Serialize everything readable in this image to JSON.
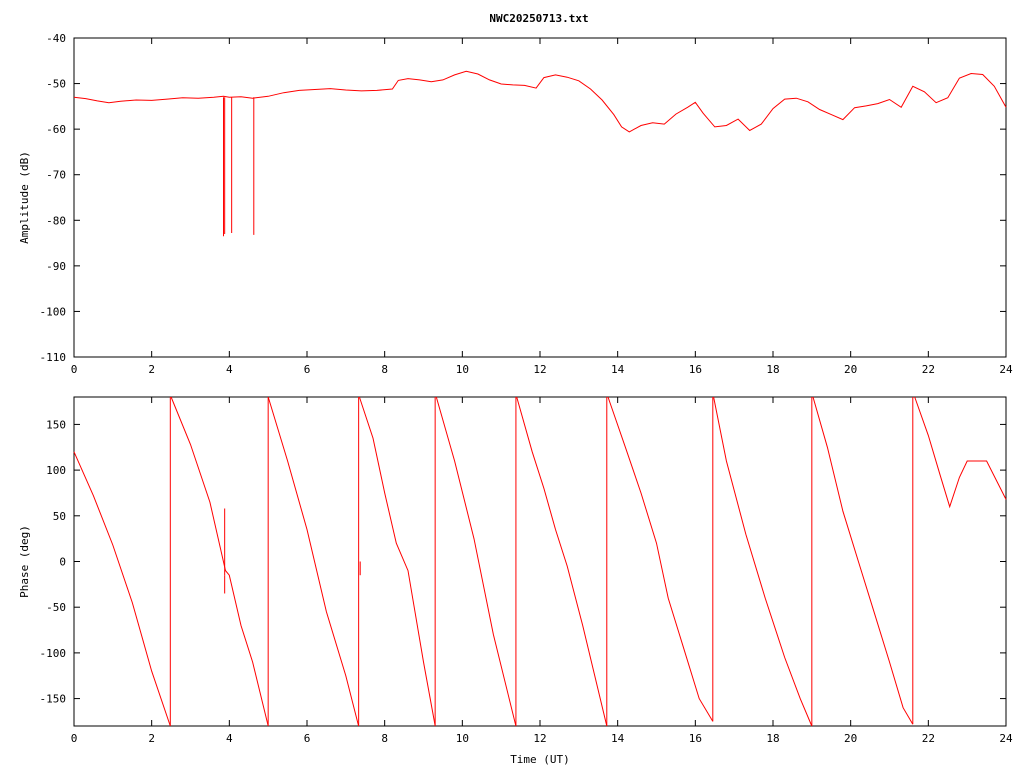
{
  "title": "NWC20250713.txt",
  "chart_data": [
    {
      "type": "line",
      "title": "NWC20250713.txt",
      "xlabel": "",
      "ylabel": "Amplitude (dB)",
      "xlim": [
        0,
        24
      ],
      "ylim": [
        -110,
        -40
      ],
      "xticks": [
        "0",
        "2",
        "4",
        "6",
        "8",
        "10",
        "12",
        "14",
        "16",
        "18",
        "20",
        "22",
        "24"
      ],
      "yticks": [
        "-40",
        "-50",
        "-60",
        "-70",
        "-80",
        "-90",
        "-100",
        "-110"
      ],
      "grid": false,
      "color": "#ff0000",
      "series": [
        {
          "x": [
            0,
            0.3,
            0.6,
            0.9,
            1.2,
            1.6,
            2.0,
            2.4,
            2.8,
            3.2,
            3.6,
            3.85,
            4.0,
            4.3,
            4.6,
            5.0,
            5.4,
            5.8,
            6.2,
            6.6,
            7.0,
            7.4,
            7.8,
            8.2,
            8.35,
            8.6,
            8.9,
            9.2,
            9.5,
            9.8,
            10.1,
            10.4,
            10.7,
            11.0,
            11.3,
            11.6,
            11.9,
            12.1,
            12.4,
            12.7,
            13.0,
            13.3,
            13.6,
            13.9,
            14.1,
            14.3,
            14.6,
            14.9,
            15.2,
            15.5,
            15.8,
            16.0,
            16.2,
            16.5,
            16.8,
            17.1,
            17.4,
            17.7,
            18.0,
            18.3,
            18.6,
            18.9,
            19.2,
            19.5,
            19.8,
            20.1,
            20.4,
            20.7,
            21.0,
            21.3,
            21.6,
            21.9,
            22.2,
            22.5,
            22.8,
            23.1,
            23.4,
            23.7,
            24.0
          ],
          "y": [
            -53,
            -53.3,
            -53.8,
            -54.2,
            -53.9,
            -53.6,
            -53.7,
            -53.4,
            -53.1,
            -53.2,
            -53.0,
            -52.8,
            -53.0,
            -52.9,
            -53.2,
            -52.8,
            -52.0,
            -51.5,
            -51.3,
            -51.1,
            -51.4,
            -51.6,
            -51.5,
            -51.2,
            -49.3,
            -48.9,
            -49.2,
            -49.6,
            -49.2,
            -48.1,
            -47.3,
            -47.9,
            -49.2,
            -50.1,
            -50.3,
            -50.4,
            -51.0,
            -48.7,
            -48.1,
            -48.6,
            -49.4,
            -51.2,
            -53.6,
            -56.8,
            -59.5,
            -60.6,
            -59.2,
            -58.6,
            -58.9,
            -56.7,
            -55.2,
            -54.1,
            -56.5,
            -59.5,
            -59.2,
            -57.8,
            -60.3,
            -58.9,
            -55.5,
            -53.4,
            -53.2,
            -54.0,
            -55.7,
            -56.8,
            -57.9,
            -55.3,
            -54.9,
            -54.4,
            -53.5,
            -55.2,
            -50.6,
            -51.8,
            -54.2,
            -53.1,
            -48.8,
            -47.8,
            -48.0,
            -50.6,
            -55.2
          ],
          "spikes": [
            [
              3.85,
              -83.5
            ],
            [
              3.88,
              -83.0
            ],
            [
              4.06,
              -82.8
            ],
            [
              4.63,
              -83.2
            ]
          ]
        }
      ]
    },
    {
      "type": "line",
      "title": "",
      "xlabel": "Time (UT)",
      "ylabel": "Phase (deg)",
      "xlim": [
        0,
        24
      ],
      "ylim": [
        -180,
        180
      ],
      "xticks": [
        "0",
        "2",
        "4",
        "6",
        "8",
        "10",
        "12",
        "14",
        "16",
        "18",
        "20",
        "22",
        "24"
      ],
      "yticks": [
        "150",
        "100",
        "50",
        "0",
        "-50",
        "-100",
        "-150"
      ],
      "grid": false,
      "color": "#ff0000",
      "series": [
        {
          "segments": [
            {
              "x": [
                0,
                0.5,
                1.0,
                1.5,
                2.0,
                2.48
              ],
              "y": [
                120,
                72,
                18,
                -45,
                -120,
                -180
              ]
            },
            {
              "x": [
                2.5,
                3.0,
                3.5,
                3.9,
                4.0,
                4.3,
                4.6,
                5.0
              ],
              "y": [
                180,
                128,
                65,
                -10,
                -15,
                -70,
                -110,
                -180
              ]
            },
            {
              "x": [
                5.0,
                5.5,
                6.0,
                6.5,
                7.0,
                7.33
              ],
              "y": [
                180,
                110,
                35,
                -55,
                -125,
                -180
              ]
            },
            {
              "x": [
                7.35,
                7.7,
                8.0,
                8.3,
                8.6,
                9.0,
                9.3
              ],
              "y": [
                180,
                135,
                75,
                20,
                -10,
                -110,
                -180
              ]
            },
            {
              "x": [
                9.33,
                9.8,
                10.3,
                10.8,
                11.38
              ],
              "y": [
                180,
                110,
                25,
                -80,
                -180
              ]
            },
            {
              "x": [
                11.4,
                11.8,
                12.1,
                12.4,
                12.7,
                13.1,
                13.72
              ],
              "y": [
                180,
                120,
                80,
                35,
                -5,
                -70,
                -180
              ]
            },
            {
              "x": [
                13.75,
                14.2,
                14.6,
                15.0,
                15.3,
                15.7,
                16.1,
                16.45
              ],
              "y": [
                180,
                125,
                75,
                20,
                -40,
                -95,
                -150,
                -175
              ]
            },
            {
              "x": [
                16.47,
                16.8,
                17.3,
                17.8,
                18.3,
                18.7,
                19.0
              ],
              "y": [
                180,
                110,
                30,
                -40,
                -105,
                -150,
                -180
              ]
            },
            {
              "x": [
                19.03,
                19.4,
                19.8,
                20.2,
                20.6,
                21.0,
                21.35,
                21.6
              ],
              "y": [
                180,
                125,
                55,
                0,
                -55,
                -110,
                -160,
                -178
              ]
            },
            {
              "x": [
                21.65,
                22.0,
                22.3,
                22.55,
                22.8,
                23.0,
                23.5,
                24.0
              ],
              "y": [
                180,
                138,
                95,
                60,
                92,
                110,
                110,
                68
              ]
            }
          ],
          "spikes": [
            [
              3.88,
              58
            ],
            [
              3.88,
              -35
            ],
            [
              7.37,
              0
            ]
          ]
        }
      ]
    }
  ]
}
